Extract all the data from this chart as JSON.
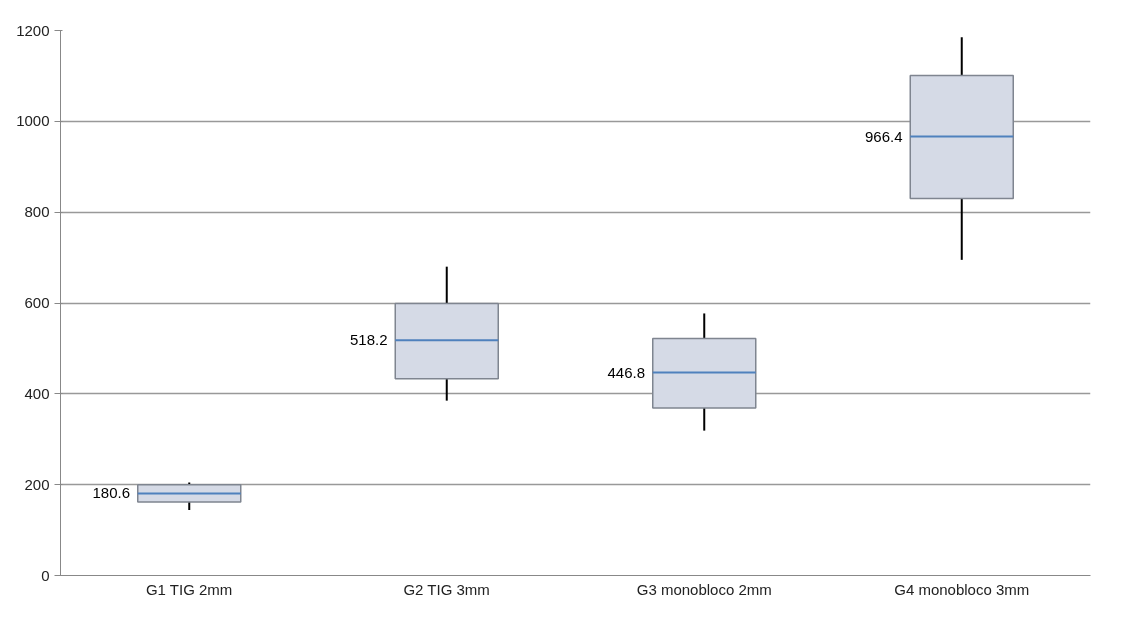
{
  "chart_data": {
    "type": "box",
    "categories": [
      "G1 TIG 2mm",
      "G2 TIG 3mm",
      "G3 monobloco 2mm",
      "G4 monobloco 3mm"
    ],
    "boxes": [
      {
        "low": 144,
        "q1": 162,
        "median": 180.6,
        "q3": 200,
        "high": 205
      },
      {
        "low": 385,
        "q1": 433,
        "median": 518.2,
        "q3": 599,
        "high": 680
      },
      {
        "low": 319,
        "q1": 369,
        "median": 446.8,
        "q3": 522,
        "high": 577
      },
      {
        "low": 695,
        "q1": 830,
        "median": 966.4,
        "q3": 1101,
        "high": 1185
      }
    ],
    "value_labels": [
      "180.6",
      "518.2",
      "446.8",
      "966.4"
    ],
    "color": "#d5dae6",
    "ylim": [
      0,
      1200
    ],
    "yticks": [
      0,
      200,
      400,
      600,
      800,
      1000,
      1200
    ],
    "grid": "y"
  }
}
